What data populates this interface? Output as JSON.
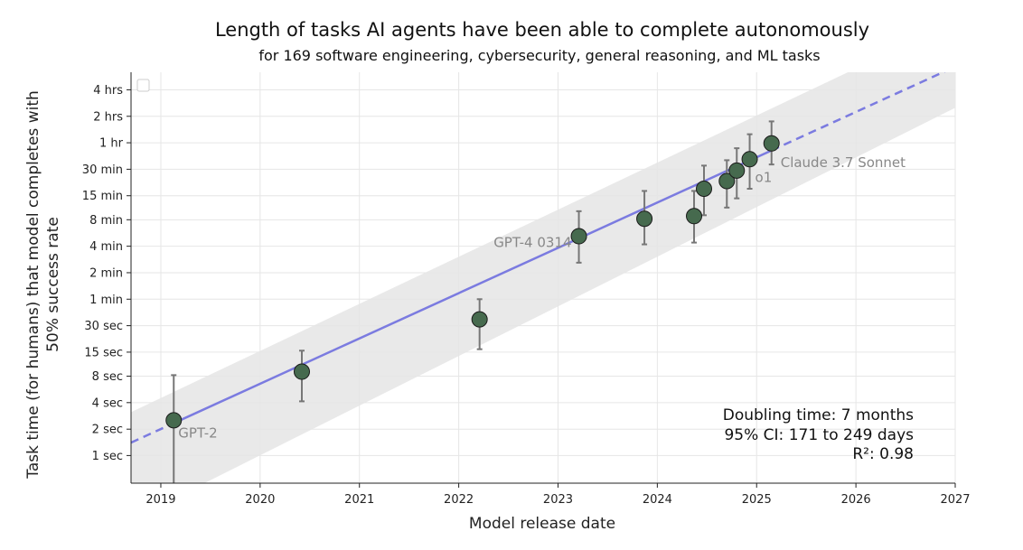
{
  "chart_data": {
    "type": "scatter",
    "title": "Length of tasks AI agents have been able to complete autonomously",
    "subtitle": "for 169 software engineering, cybersecurity, general reasoning, and ML tasks",
    "xlabel": "Model release date",
    "ylabel_lines": [
      "Task time (for humans) that model completes with",
      "50% success rate"
    ],
    "x_range": [
      2018.7,
      2027.0
    ],
    "y_range_minutes": [
      0.0081,
      380
    ],
    "x_ticks": [
      {
        "value": 2019,
        "label": "2019"
      },
      {
        "value": 2020,
        "label": "2020"
      },
      {
        "value": 2021,
        "label": "2021"
      },
      {
        "value": 2022,
        "label": "2022"
      },
      {
        "value": 2023,
        "label": "2023"
      },
      {
        "value": 2024,
        "label": "2024"
      },
      {
        "value": 2025,
        "label": "2025"
      },
      {
        "value": 2026,
        "label": "2026"
      },
      {
        "value": 2027,
        "label": "2027"
      }
    ],
    "y_ticks": [
      {
        "minutes": 240,
        "label": "4 hrs"
      },
      {
        "minutes": 120,
        "label": "2 hrs"
      },
      {
        "minutes": 60,
        "label": "1 hr"
      },
      {
        "minutes": 30,
        "label": "30 min"
      },
      {
        "minutes": 15,
        "label": "15 min"
      },
      {
        "minutes": 8,
        "label": "8 min"
      },
      {
        "minutes": 4,
        "label": "4 min"
      },
      {
        "minutes": 2,
        "label": "2 min"
      },
      {
        "minutes": 1,
        "label": "1 min"
      },
      {
        "minutes": 0.5,
        "label": "30 sec"
      },
      {
        "minutes": 0.25,
        "label": "15 sec"
      },
      {
        "minutes": 0.1333,
        "label": "8 sec"
      },
      {
        "minutes": 0.0667,
        "label": "4 sec"
      },
      {
        "minutes": 0.0333,
        "label": "2 sec"
      },
      {
        "minutes": 0.0167,
        "label": "1 sec"
      }
    ],
    "points": [
      {
        "x": 2019.13,
        "y": 0.042,
        "lo": 0.0058,
        "hi": 0.137,
        "label": "GPT-2"
      },
      {
        "x": 2020.42,
        "y": 0.15,
        "lo": 0.069,
        "hi": 0.26,
        "label": ""
      },
      {
        "x": 2022.21,
        "y": 0.59,
        "lo": 0.27,
        "hi": 1.0,
        "label": ""
      },
      {
        "x": 2023.21,
        "y": 5.2,
        "lo": 2.6,
        "hi": 10.0,
        "label": "GPT-4 0314"
      },
      {
        "x": 2023.87,
        "y": 8.2,
        "lo": 4.2,
        "hi": 17.0,
        "label": ""
      },
      {
        "x": 2024.37,
        "y": 8.8,
        "lo": 4.4,
        "hi": 17.0,
        "label": ""
      },
      {
        "x": 2024.47,
        "y": 18.0,
        "lo": 9.0,
        "hi": 33.0,
        "label": ""
      },
      {
        "x": 2024.7,
        "y": 22.0,
        "lo": 11.0,
        "hi": 38.0,
        "label": ""
      },
      {
        "x": 2024.8,
        "y": 29.0,
        "lo": 14.0,
        "hi": 52.0,
        "label": ""
      },
      {
        "x": 2024.93,
        "y": 39.0,
        "lo": 18.0,
        "hi": 75.0,
        "label": "o1"
      },
      {
        "x": 2025.15,
        "y": 59.0,
        "lo": 34.0,
        "hi": 105.0,
        "label": "Claude 3.7 Sonnet"
      }
    ],
    "trend": {
      "type": "exponential",
      "x0": 2018.7,
      "y0_minutes": 0.0234,
      "x1": 2027.0,
      "y1_minutes": 440,
      "solid_from": 2019.13,
      "solid_to": 2025.15,
      "band_lower": [
        [
          2018.7,
          0.0031
        ],
        [
          2027.0,
          150
        ]
      ],
      "band_upper": [
        [
          2018.7,
          0.052
        ],
        [
          2027.0,
          1440
        ]
      ]
    },
    "grid": true,
    "legend": "top-left (empty)",
    "colors": {
      "point_fill": "#466a4e",
      "point_stroke": "#1a1a1a",
      "trend": "#7b7be0",
      "band": "#e5e5e5",
      "errorbar": "#777777",
      "grid": "#e6e6e6"
    }
  },
  "stats": {
    "doubling": "Doubling time: 7 months",
    "ci": "95% CI: 171 to 249 days",
    "r2": "R²: 0.98"
  }
}
